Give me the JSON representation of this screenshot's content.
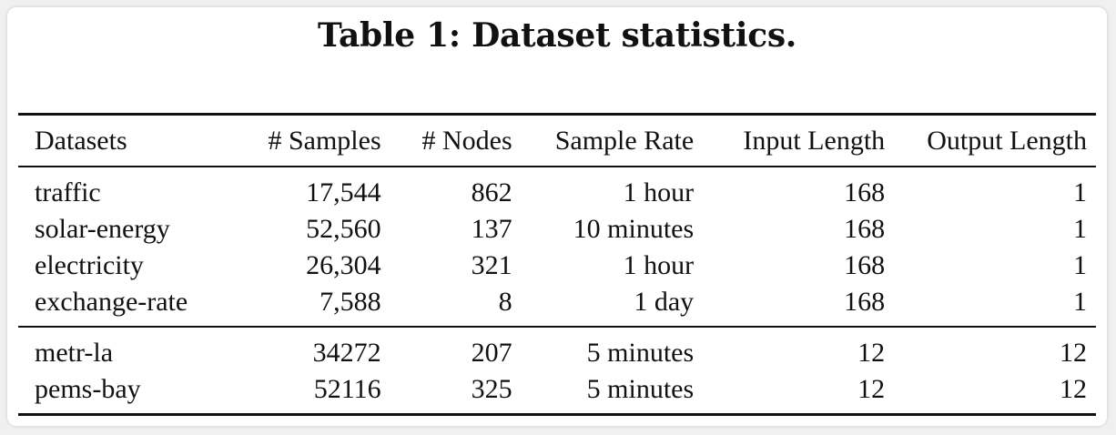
{
  "caption": "Table 1: Dataset statistics.",
  "columns": [
    "Datasets",
    "# Samples",
    "# Nodes",
    "Sample Rate",
    "Input Length",
    "Output Length"
  ],
  "groups": [
    [
      [
        "traffic",
        "17,544",
        "862",
        "1 hour",
        "168",
        "1"
      ],
      [
        "solar-energy",
        "52,560",
        "137",
        "10 minutes",
        "168",
        "1"
      ],
      [
        "electricity",
        "26,304",
        "321",
        "1 hour",
        "168",
        "1"
      ],
      [
        "exchange-rate",
        "7,588",
        "8",
        "1 day",
        "168",
        "1"
      ]
    ],
    [
      [
        "metr-la",
        "34272",
        "207",
        "5 minutes",
        "12",
        "12"
      ],
      [
        "pems-bay",
        "52116",
        "325",
        "5 minutes",
        "12",
        "12"
      ]
    ]
  ]
}
